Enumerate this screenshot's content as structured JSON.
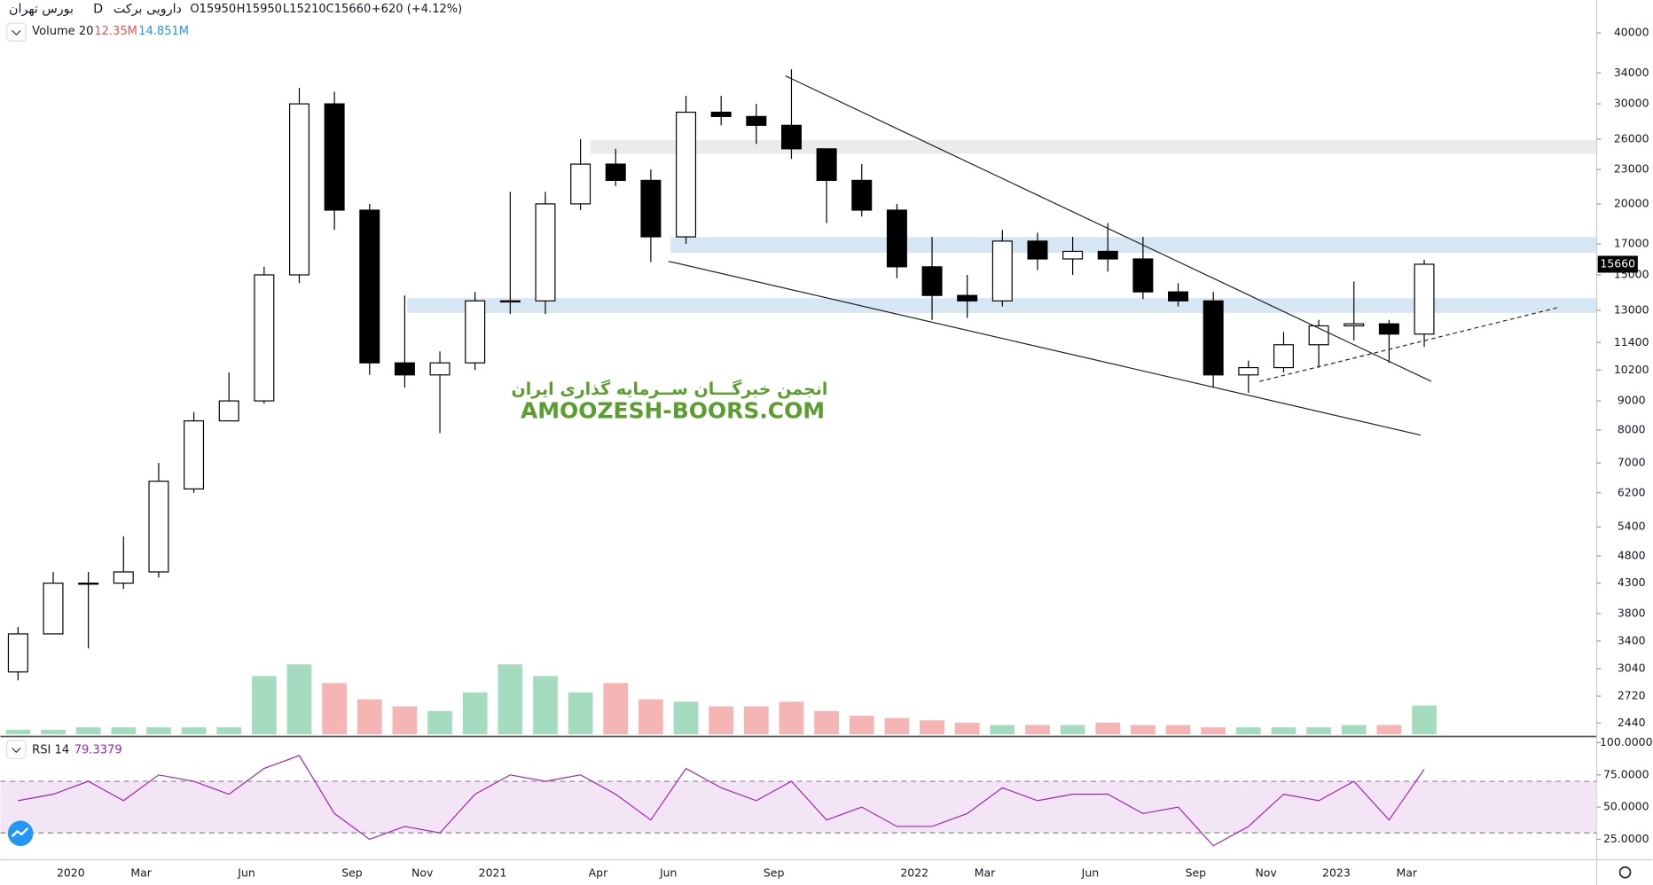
{
  "header": {
    "symbol": "دارویی برکت",
    "interval": "D",
    "exchange": "بورس تهران",
    "open": "O15950",
    "high": "H15950",
    "low": "L15210",
    "close": "C15660",
    "change": "+620 (+4.12%)",
    "volume_title": "Volume 20",
    "volume_ma": "14.851M",
    "rsi_title": "RSI 14"
  },
  "watermark": {
    "line1": "انجمن خبرگـــان ســرمایه گذاری ایران",
    "line2": "AMOOZESH-BOORS.COM"
  },
  "chart_data": [
    {
      "type": "candlestick",
      "log_scale": true,
      "up_color": "#ffffff",
      "down_color": "#000000",
      "categories": [
        null,
        null,
        "2020",
        null,
        "Mar",
        null,
        null,
        "Jun",
        null,
        null,
        "Sep",
        null,
        "Nov",
        null,
        "2021",
        null,
        null,
        "Apr",
        null,
        "Jun",
        null,
        null,
        "Sep",
        null,
        null,
        null,
        "2022",
        null,
        "Mar",
        null,
        null,
        "Jun",
        null,
        null,
        "Sep",
        null,
        "Nov",
        null,
        "2023",
        null,
        "Mar"
      ],
      "open": [
        3000,
        3500,
        4300,
        4300,
        4500,
        6300,
        8300,
        9000,
        15000,
        30000,
        19500,
        10500,
        10000,
        10500,
        13500,
        13500,
        20000,
        23500,
        22000,
        17500,
        29000,
        28500,
        27500,
        25000,
        22000,
        19500,
        15500,
        13800,
        13500,
        17200,
        16000,
        16500,
        16000,
        14000,
        13500,
        10000,
        10300,
        11300,
        12200,
        12300,
        11800
      ],
      "high": [
        3600,
        4500,
        4500,
        5200,
        7000,
        8600,
        10100,
        15500,
        32000,
        31500,
        20000,
        13800,
        11000,
        14000,
        21000,
        21000,
        26000,
        25000,
        23000,
        31000,
        31000,
        30000,
        34500,
        25000,
        23500,
        20000,
        17500,
        15000,
        18000,
        17800,
        17500,
        18500,
        17500,
        14500,
        14000,
        10600,
        11900,
        12500,
        14600,
        12500,
        15950
      ],
      "low": [
        2900,
        3500,
        3300,
        4200,
        4400,
        6200,
        8400,
        8900,
        14500,
        18000,
        10000,
        9500,
        7900,
        10200,
        12800,
        12800,
        19500,
        21500,
        15800,
        17000,
        27500,
        25500,
        24000,
        18500,
        19000,
        14800,
        12500,
        12600,
        13200,
        15300,
        15000,
        15200,
        13600,
        13200,
        9500,
        9300,
        10100,
        10300,
        11500,
        10500,
        11200
      ],
      "close": [
        3500,
        4300,
        4300,
        4500,
        6500,
        8300,
        9000,
        15000,
        30000,
        19500,
        10500,
        10000,
        10500,
        13500,
        13500,
        20000,
        23500,
        22000,
        17500,
        29000,
        28500,
        27500,
        25000,
        22000,
        19500,
        15500,
        13800,
        13500,
        17200,
        16000,
        16500,
        16000,
        14000,
        13500,
        10000,
        10300,
        11300,
        12200,
        12300,
        11800,
        15660
      ],
      "ylim": [
        2320,
        45700
      ],
      "yticks": [
        2440,
        2720,
        3040,
        3400,
        3800,
        4300,
        4800,
        5400,
        6200,
        7000,
        8000,
        9000,
        10200,
        11400,
        13000,
        15000,
        17000,
        20000,
        23000,
        26000,
        30000,
        34000,
        40000
      ]
    },
    {
      "type": "bar",
      "name": "Volume",
      "up_color": "#8fd3b0",
      "down_color": "#f3a3a3",
      "values": [
        2,
        2,
        3,
        3,
        3,
        3,
        3,
        25,
        30,
        22,
        15,
        12,
        10,
        18,
        30,
        25,
        18,
        22,
        15,
        14,
        12,
        12,
        14,
        10,
        8,
        7,
        6,
        5,
        4,
        4,
        4,
        5,
        4,
        4,
        3,
        3,
        3,
        3,
        4,
        4,
        12.35
      ],
      "value_labels": [
        null,
        null,
        null,
        null,
        null,
        null,
        null,
        null,
        null,
        null,
        null,
        null,
        null,
        null,
        null,
        null,
        null,
        null,
        null,
        null,
        null,
        null,
        null,
        null,
        null,
        null,
        null,
        null,
        null,
        null,
        null,
        null,
        null,
        null,
        null,
        null,
        null,
        null,
        null,
        null,
        "12.35M"
      ],
      "ylim": [
        0,
        80
      ]
    },
    {
      "type": "line",
      "name": "RSI",
      "color": "#9c27b0",
      "band": [
        30,
        70
      ],
      "band_color": "#f3e5f5",
      "values": [
        55,
        60,
        70,
        55,
        75,
        70,
        60,
        80,
        90,
        45,
        25,
        35,
        30,
        60,
        75,
        70,
        75,
        60,
        40,
        80,
        65,
        55,
        70,
        40,
        50,
        35,
        35,
        45,
        65,
        55,
        60,
        60,
        45,
        50,
        20,
        35,
        60,
        55,
        70,
        40,
        79.3379
      ],
      "ylim": [
        10,
        104
      ],
      "yticks": [
        {
          "value": 25,
          "label": "25.0000"
        },
        {
          "value": 50,
          "label": "50.0000"
        },
        {
          "value": 75,
          "label": "75.0000"
        },
        {
          "value": 100,
          "label": "100.0000"
        }
      ]
    }
  ]
}
